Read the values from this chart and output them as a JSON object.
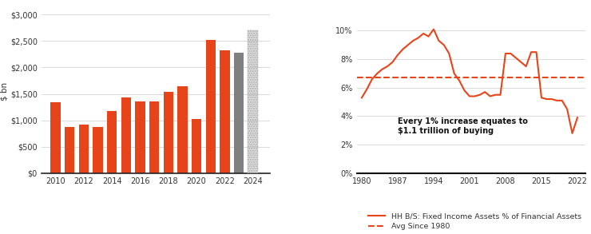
{
  "bar_years": [
    2010,
    2011,
    2012,
    2013,
    2014,
    2015,
    2016,
    2017,
    2018,
    2019,
    2020,
    2021,
    2022,
    2023
  ],
  "bar_values": [
    1340,
    880,
    920,
    880,
    1180,
    1440,
    1360,
    1360,
    1540,
    1640,
    1020,
    2520,
    2320,
    2280
  ],
  "bar_colors": [
    "#E8441A",
    "#E8441A",
    "#E8441A",
    "#E8441A",
    "#E8441A",
    "#E8441A",
    "#E8441A",
    "#E8441A",
    "#E8441A",
    "#E8441A",
    "#E8441A",
    "#E8441A",
    "#E8441A",
    "#808080"
  ],
  "bar_2024_value": 2700,
  "bar_ylabel": "$ bn",
  "bar_yticks": [
    0,
    500,
    1000,
    1500,
    2000,
    2500,
    3000
  ],
  "bar_ytick_labels": [
    "$0",
    "$500",
    "$1,000",
    "$1,500",
    "$2,000",
    "$2,500",
    "$3,000"
  ],
  "bar_ylim": [
    0,
    3100
  ],
  "line_years": [
    1980,
    1981,
    1982,
    1983,
    1984,
    1985,
    1986,
    1987,
    1988,
    1989,
    1990,
    1991,
    1992,
    1993,
    1994,
    1995,
    1996,
    1997,
    1998,
    1999,
    2000,
    2001,
    2002,
    2003,
    2004,
    2005,
    2006,
    2007,
    2008,
    2009,
    2010,
    2011,
    2012,
    2013,
    2014,
    2015,
    2016,
    2017,
    2018,
    2019,
    2020,
    2021,
    2022
  ],
  "line_values": [
    5.3,
    5.9,
    6.6,
    7.0,
    7.3,
    7.5,
    7.8,
    8.3,
    8.7,
    9.0,
    9.3,
    9.5,
    9.8,
    9.6,
    10.1,
    9.3,
    9.0,
    8.4,
    7.0,
    6.5,
    5.8,
    5.4,
    5.4,
    5.5,
    5.7,
    5.4,
    5.5,
    5.5,
    8.4,
    8.4,
    8.1,
    7.8,
    7.5,
    8.5,
    8.5,
    5.3,
    5.2,
    5.2,
    5.1,
    5.1,
    4.5,
    2.8,
    3.9
  ],
  "avg_line": 6.7,
  "line_color": "#E8441A",
  "avg_color": "#E8441A",
  "line_yticks": [
    0,
    2,
    4,
    6,
    8,
    10
  ],
  "line_ytick_labels": [
    "0%",
    "2%",
    "4%",
    "6%",
    "8%",
    "10%"
  ],
  "line_ylim": [
    0,
    11.5
  ],
  "line_xticks": [
    1980,
    1987,
    1994,
    2001,
    2008,
    2015,
    2022
  ],
  "annotation_text": "Every 1% increase equates to\n$1.1 trillion of buying",
  "legend_line_label": "HH B/S: Fixed Income Assets % of Financial Assets",
  "legend_avg_label": "Avg Since 1980",
  "orange": "#E8441A",
  "gray": "#808080",
  "bg_color": "#ffffff",
  "grid_color": "#cccccc",
  "text_color": "#333333"
}
